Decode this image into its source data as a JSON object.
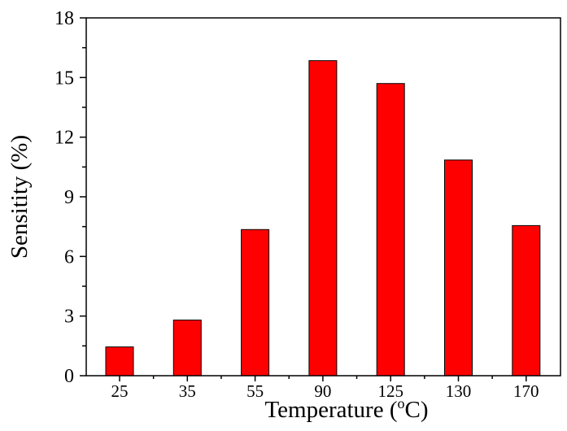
{
  "chart_data": {
    "type": "bar",
    "title": "",
    "xlabel": "Temperature (",
    "xlabel_sup": "o",
    "xlabel_end": "C)",
    "ylabel": "Sensitity (%)",
    "categories": [
      "25",
      "35",
      "55",
      "90",
      "125",
      "130",
      "170"
    ],
    "values": [
      1.45,
      2.8,
      7.35,
      15.85,
      14.7,
      10.85,
      7.55
    ],
    "ylim": [
      0,
      18
    ],
    "yticks": [
      "0",
      "3",
      "6",
      "9",
      "12",
      "15",
      "18"
    ],
    "ytick_values": [
      0,
      3,
      6,
      9,
      12,
      15,
      18
    ],
    "bar_color": "#ff0000",
    "grid": false,
    "legend": "none"
  }
}
